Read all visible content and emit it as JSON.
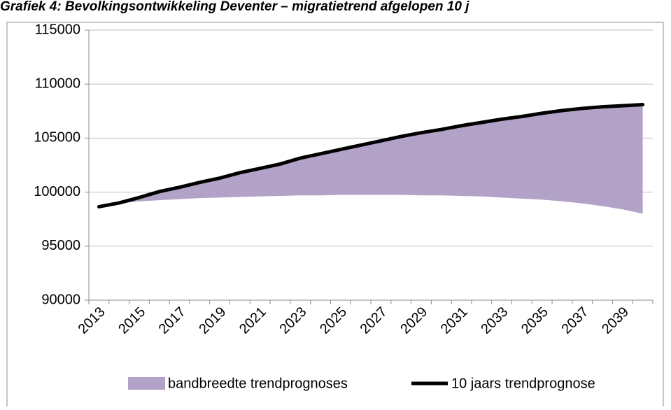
{
  "chart_data": {
    "type": "band-line",
    "title": "Grafiek 4: Bevolkingsontwikkeling Deventer – migratietrend afgelopen 10 j",
    "categories": [
      "2013",
      null,
      "2015",
      null,
      "2017",
      null,
      "2019",
      null,
      "2021",
      null,
      "2023",
      null,
      "2025",
      null,
      "2027",
      null,
      "2029",
      null,
      "2031",
      null,
      "2033",
      null,
      "2035",
      null,
      "2037",
      null,
      "2039",
      null
    ],
    "series": [
      {
        "name": "bandbreedte trendprognoses",
        "color": "#b3a2c7",
        "high": [
          98650,
          99000,
          99500,
          100050,
          100450,
          100900,
          101300,
          101800,
          102200,
          102600,
          103150,
          103550,
          103950,
          104350,
          104750,
          105150,
          105500,
          105800,
          106150,
          106450,
          106750,
          107000,
          107300,
          107550,
          107750,
          107900,
          108000,
          108100
        ],
        "low": [
          98650,
          98950,
          99150,
          99250,
          99350,
          99450,
          99500,
          99550,
          99600,
          99650,
          99700,
          99700,
          99750,
          99750,
          99750,
          99750,
          99700,
          99700,
          99650,
          99600,
          99500,
          99400,
          99300,
          99150,
          98950,
          98700,
          98400,
          98000
        ]
      },
      {
        "name": "10 jaars trendprognose",
        "color": "#000000",
        "values": [
          98650,
          99000,
          99500,
          100050,
          100450,
          100900,
          101300,
          101800,
          102200,
          102600,
          103150,
          103550,
          103950,
          104350,
          104750,
          105150,
          105500,
          105800,
          106150,
          106450,
          106750,
          107000,
          107300,
          107550,
          107750,
          107900,
          108000,
          108100
        ]
      }
    ],
    "ylim": [
      90000,
      115000
    ],
    "yticks": [
      90000,
      95000,
      100000,
      105000,
      110000,
      115000
    ],
    "grid": true,
    "legend": "bottom"
  }
}
